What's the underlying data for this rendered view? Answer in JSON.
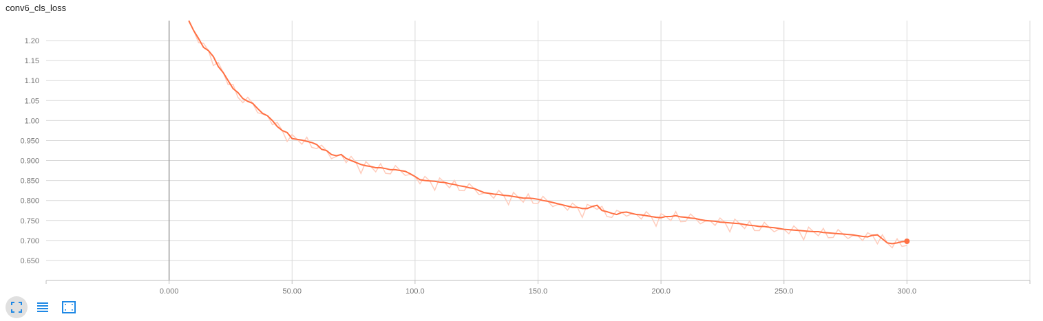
{
  "chart_data": {
    "type": "line",
    "title": "conv6_cls_loss",
    "xlabel": "",
    "ylabel": "",
    "xlim": [
      -50,
      350
    ],
    "ylim": [
      0.6,
      1.25
    ],
    "x_ticks": [
      {
        "value": 0,
        "label": "0.000"
      },
      {
        "value": 50,
        "label": "50.00"
      },
      {
        "value": 100,
        "label": "100.0"
      },
      {
        "value": 150,
        "label": "150.0"
      },
      {
        "value": 200,
        "label": "200.0"
      },
      {
        "value": 250,
        "label": "250.0"
      },
      {
        "value": 300,
        "label": "300.0"
      }
    ],
    "y_ticks": [
      {
        "value": 0.65,
        "label": "0.650"
      },
      {
        "value": 0.7,
        "label": "0.700"
      },
      {
        "value": 0.75,
        "label": "0.750"
      },
      {
        "value": 0.8,
        "label": "0.800"
      },
      {
        "value": 0.85,
        "label": "0.850"
      },
      {
        "value": 0.9,
        "label": "0.900"
      },
      {
        "value": 0.95,
        "label": "0.950"
      },
      {
        "value": 1.0,
        "label": "1.00"
      },
      {
        "value": 1.05,
        "label": "1.05"
      },
      {
        "value": 1.1,
        "label": "1.10"
      },
      {
        "value": 1.15,
        "label": "1.15"
      },
      {
        "value": 1.2,
        "label": "1.20"
      }
    ],
    "grid": true,
    "series": [
      {
        "color": "#ff7043",
        "raw_color": "#ffccbc",
        "x": [
          8,
          10,
          12,
          14,
          16,
          18,
          20,
          22,
          24,
          26,
          28,
          30,
          32,
          34,
          36,
          38,
          40,
          42,
          44,
          46,
          48,
          50,
          52,
          54,
          56,
          58,
          60,
          62,
          64,
          66,
          68,
          70,
          72,
          74,
          76,
          78,
          80,
          82,
          84,
          86,
          88,
          90,
          92,
          94,
          96,
          98,
          100,
          102,
          104,
          106,
          108,
          110,
          112,
          114,
          116,
          118,
          120,
          122,
          124,
          126,
          128,
          130,
          132,
          134,
          136,
          138,
          140,
          142,
          144,
          146,
          148,
          150,
          152,
          154,
          156,
          158,
          160,
          162,
          164,
          166,
          168,
          170,
          172,
          174,
          176,
          178,
          180,
          182,
          184,
          186,
          188,
          190,
          192,
          194,
          196,
          198,
          200,
          202,
          204,
          206,
          208,
          210,
          212,
          214,
          216,
          218,
          220,
          222,
          224,
          226,
          228,
          230,
          232,
          234,
          236,
          238,
          240,
          242,
          244,
          246,
          248,
          250,
          252,
          254,
          256,
          258,
          260,
          262,
          264,
          266,
          268,
          270,
          272,
          274,
          276,
          278,
          280,
          282,
          284,
          286,
          288,
          290,
          292,
          294,
          296,
          298,
          300
        ],
        "values": [
          1.25,
          1.225,
          1.205,
          1.183,
          1.175,
          1.16,
          1.135,
          1.12,
          1.1,
          1.08,
          1.07,
          1.055,
          1.048,
          1.043,
          1.03,
          1.018,
          1.012,
          1.0,
          0.985,
          0.975,
          0.97,
          0.955,
          0.953,
          0.951,
          0.948,
          0.945,
          0.94,
          0.928,
          0.925,
          0.915,
          0.912,
          0.915,
          0.905,
          0.9,
          0.895,
          0.89,
          0.887,
          0.885,
          0.882,
          0.882,
          0.88,
          0.877,
          0.877,
          0.875,
          0.873,
          0.867,
          0.86,
          0.852,
          0.85,
          0.849,
          0.848,
          0.846,
          0.845,
          0.842,
          0.84,
          0.837,
          0.835,
          0.832,
          0.83,
          0.825,
          0.82,
          0.818,
          0.816,
          0.815,
          0.813,
          0.812,
          0.81,
          0.808,
          0.806,
          0.806,
          0.805,
          0.803,
          0.8,
          0.798,
          0.795,
          0.792,
          0.789,
          0.786,
          0.783,
          0.783,
          0.78,
          0.78,
          0.785,
          0.788,
          0.775,
          0.772,
          0.768,
          0.765,
          0.77,
          0.771,
          0.768,
          0.765,
          0.764,
          0.762,
          0.76,
          0.758,
          0.757,
          0.76,
          0.76,
          0.762,
          0.759,
          0.758,
          0.756,
          0.755,
          0.752,
          0.75,
          0.749,
          0.748,
          0.746,
          0.745,
          0.744,
          0.743,
          0.742,
          0.74,
          0.738,
          0.737,
          0.735,
          0.735,
          0.733,
          0.732,
          0.73,
          0.728,
          0.727,
          0.726,
          0.725,
          0.724,
          0.723,
          0.722,
          0.722,
          0.72,
          0.719,
          0.718,
          0.717,
          0.716,
          0.715,
          0.714,
          0.712,
          0.71,
          0.709,
          0.713,
          0.714,
          0.704,
          0.694,
          0.692,
          0.694,
          0.697,
          0.698
        ]
      }
    ]
  }
}
